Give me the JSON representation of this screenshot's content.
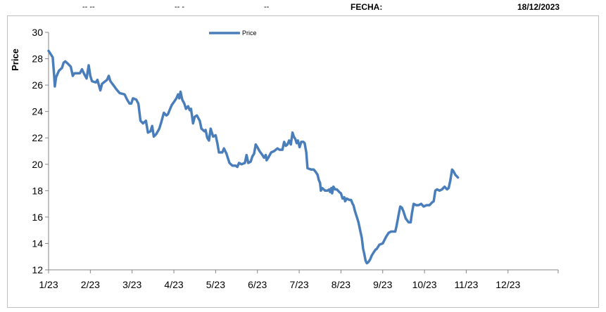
{
  "header": {
    "field1": "-- --",
    "field2": "-- -",
    "field3": "--",
    "fecha_label": "FECHA:",
    "fecha_value": "18/12/2023"
  },
  "colors": {
    "series": "#4a7ebb",
    "axis": "#868686",
    "frame": "#bfbfbf"
  },
  "chart_data": {
    "type": "line",
    "title": "",
    "xlabel": "",
    "ylabel": "Price",
    "ylim": [
      12,
      30
    ],
    "yticks": [
      12,
      14,
      16,
      18,
      20,
      22,
      24,
      26,
      28,
      30
    ],
    "xlim": [
      0,
      12.2
    ],
    "xticks": [
      {
        "pos": 0,
        "label": "1/23"
      },
      {
        "pos": 1,
        "label": "2/23"
      },
      {
        "pos": 2,
        "label": "3/23"
      },
      {
        "pos": 3,
        "label": "4/23"
      },
      {
        "pos": 4,
        "label": "5/23"
      },
      {
        "pos": 5,
        "label": "6/23"
      },
      {
        "pos": 6,
        "label": "7/23"
      },
      {
        "pos": 7,
        "label": "8/23"
      },
      {
        "pos": 8,
        "label": "9/23"
      },
      {
        "pos": 9,
        "label": "10/23"
      },
      {
        "pos": 10,
        "label": "11/23"
      },
      {
        "pos": 11,
        "label": "12/23"
      }
    ],
    "grid": false,
    "legend_position": "top-center",
    "series": [
      {
        "name": "Price",
        "points": [
          [
            0.0,
            28.6
          ],
          [
            0.06,
            28.3
          ],
          [
            0.1,
            28.1
          ],
          [
            0.13,
            26.9
          ],
          [
            0.15,
            25.9
          ],
          [
            0.18,
            26.6
          ],
          [
            0.25,
            27.1
          ],
          [
            0.32,
            27.3
          ],
          [
            0.36,
            27.7
          ],
          [
            0.4,
            27.8
          ],
          [
            0.47,
            27.6
          ],
          [
            0.53,
            27.4
          ],
          [
            0.58,
            26.7
          ],
          [
            0.62,
            26.9
          ],
          [
            0.75,
            26.9
          ],
          [
            0.8,
            27.2
          ],
          [
            0.86,
            26.8
          ],
          [
            0.91,
            26.5
          ],
          [
            0.96,
            27.5
          ],
          [
            1.0,
            26.7
          ],
          [
            1.04,
            26.3
          ],
          [
            1.13,
            26.2
          ],
          [
            1.17,
            26.4
          ],
          [
            1.24,
            25.6
          ],
          [
            1.28,
            26.1
          ],
          [
            1.36,
            26.3
          ],
          [
            1.4,
            26.4
          ],
          [
            1.44,
            26.7
          ],
          [
            1.48,
            26.3
          ],
          [
            1.55,
            26.0
          ],
          [
            1.62,
            25.7
          ],
          [
            1.7,
            25.4
          ],
          [
            1.82,
            25.3
          ],
          [
            1.88,
            24.9
          ],
          [
            1.94,
            24.6
          ],
          [
            1.98,
            24.6
          ],
          [
            2.02,
            25.0
          ],
          [
            2.1,
            24.9
          ],
          [
            2.15,
            24.6
          ],
          [
            2.2,
            23.3
          ],
          [
            2.26,
            23.1
          ],
          [
            2.33,
            23.3
          ],
          [
            2.38,
            22.4
          ],
          [
            2.44,
            22.5
          ],
          [
            2.48,
            22.9
          ],
          [
            2.52,
            22.1
          ],
          [
            2.58,
            22.3
          ],
          [
            2.65,
            22.7
          ],
          [
            2.7,
            23.2
          ],
          [
            2.76,
            23.9
          ],
          [
            2.82,
            23.7
          ],
          [
            2.86,
            23.8
          ],
          [
            2.91,
            24.2
          ],
          [
            2.95,
            24.5
          ],
          [
            3.02,
            24.8
          ],
          [
            3.06,
            25.0
          ],
          [
            3.1,
            25.3
          ],
          [
            3.13,
            25.0
          ],
          [
            3.16,
            25.5
          ],
          [
            3.2,
            24.9
          ],
          [
            3.25,
            24.6
          ],
          [
            3.29,
            24.2
          ],
          [
            3.34,
            24.4
          ],
          [
            3.38,
            24.1
          ],
          [
            3.41,
            24.2
          ],
          [
            3.46,
            23.1
          ],
          [
            3.5,
            23.6
          ],
          [
            3.55,
            23.7
          ],
          [
            3.62,
            23.3
          ],
          [
            3.66,
            22.7
          ],
          [
            3.73,
            22.5
          ],
          [
            3.76,
            22.6
          ],
          [
            3.8,
            22.0
          ],
          [
            3.84,
            21.8
          ],
          [
            3.88,
            22.7
          ],
          [
            3.94,
            22.1
          ],
          [
            4.0,
            22.2
          ],
          [
            4.04,
            21.6
          ],
          [
            4.08,
            20.9
          ],
          [
            4.16,
            20.9
          ],
          [
            4.2,
            21.2
          ],
          [
            4.26,
            20.8
          ],
          [
            4.33,
            20.1
          ],
          [
            4.4,
            19.9
          ],
          [
            4.48,
            19.9
          ],
          [
            4.52,
            19.8
          ],
          [
            4.56,
            20.1
          ],
          [
            4.62,
            20.0
          ],
          [
            4.7,
            20.1
          ],
          [
            4.74,
            20.7
          ],
          [
            4.78,
            20.1
          ],
          [
            4.84,
            20.2
          ],
          [
            4.88,
            20.6
          ],
          [
            4.92,
            20.8
          ],
          [
            4.96,
            21.5
          ],
          [
            5.0,
            21.3
          ],
          [
            5.05,
            21.0
          ],
          [
            5.12,
            20.7
          ],
          [
            5.16,
            20.5
          ],
          [
            5.2,
            20.7
          ],
          [
            5.22,
            20.3
          ],
          [
            5.26,
            20.5
          ],
          [
            5.33,
            20.9
          ],
          [
            5.4,
            21.0
          ],
          [
            5.48,
            21.2
          ],
          [
            5.53,
            21.1
          ],
          [
            5.6,
            21.1
          ],
          [
            5.64,
            21.7
          ],
          [
            5.68,
            21.4
          ],
          [
            5.72,
            21.5
          ],
          [
            5.76,
            21.8
          ],
          [
            5.8,
            21.5
          ],
          [
            5.84,
            22.4
          ],
          [
            5.87,
            22.1
          ],
          [
            5.91,
            21.9
          ],
          [
            5.94,
            21.6
          ],
          [
            5.97,
            21.8
          ],
          [
            6.01,
            21.3
          ],
          [
            6.05,
            21.7
          ],
          [
            6.1,
            21.7
          ],
          [
            6.13,
            21.6
          ],
          [
            6.17,
            20.9
          ],
          [
            6.2,
            19.7
          ],
          [
            6.29,
            19.6
          ],
          [
            6.35,
            19.6
          ],
          [
            6.4,
            19.4
          ],
          [
            6.44,
            19.2
          ],
          [
            6.47,
            18.8
          ],
          [
            6.5,
            18.6
          ],
          [
            6.52,
            18.0
          ],
          [
            6.55,
            18.2
          ],
          [
            6.62,
            18.0
          ],
          [
            6.68,
            18.0
          ],
          [
            6.72,
            18.1
          ],
          [
            6.74,
            17.9
          ],
          [
            6.77,
            18.2
          ],
          [
            6.79,
            17.8
          ],
          [
            6.82,
            18.3
          ],
          [
            6.86,
            18.1
          ],
          [
            6.9,
            18.1
          ],
          [
            6.96,
            17.9
          ],
          [
            7.0,
            17.8
          ],
          [
            7.04,
            17.4
          ],
          [
            7.08,
            17.5
          ],
          [
            7.1,
            17.2
          ],
          [
            7.14,
            17.4
          ],
          [
            7.2,
            17.3
          ],
          [
            7.24,
            17.3
          ],
          [
            7.28,
            17.0
          ],
          [
            7.3,
            16.9
          ],
          [
            7.34,
            16.4
          ],
          [
            7.36,
            16.2
          ],
          [
            7.38,
            16.0
          ],
          [
            7.42,
            15.6
          ],
          [
            7.46,
            15.0
          ],
          [
            7.5,
            14.4
          ],
          [
            7.53,
            13.6
          ],
          [
            7.56,
            13.2
          ],
          [
            7.59,
            12.7
          ],
          [
            7.62,
            12.5
          ],
          [
            7.66,
            12.6
          ],
          [
            7.7,
            12.8
          ],
          [
            7.74,
            13.1
          ],
          [
            7.78,
            13.3
          ],
          [
            7.82,
            13.5
          ],
          [
            7.86,
            13.6
          ],
          [
            7.92,
            13.9
          ],
          [
            8.0,
            14.0
          ],
          [
            8.08,
            14.5
          ],
          [
            8.14,
            14.8
          ],
          [
            8.2,
            14.9
          ],
          [
            8.26,
            14.9
          ],
          [
            8.3,
            14.9
          ],
          [
            8.33,
            15.3
          ],
          [
            8.36,
            15.8
          ],
          [
            8.4,
            16.5
          ],
          [
            8.42,
            16.8
          ],
          [
            8.46,
            16.7
          ],
          [
            8.5,
            16.4
          ],
          [
            8.55,
            15.9
          ],
          [
            8.62,
            15.6
          ],
          [
            8.67,
            15.6
          ],
          [
            8.7,
            16.3
          ],
          [
            8.74,
            17.0
          ],
          [
            8.8,
            16.9
          ],
          [
            8.86,
            16.9
          ],
          [
            8.92,
            17.0
          ],
          [
            8.98,
            16.8
          ],
          [
            9.05,
            16.9
          ],
          [
            9.12,
            16.9
          ],
          [
            9.18,
            17.1
          ],
          [
            9.22,
            17.2
          ],
          [
            9.26,
            18.0
          ],
          [
            9.3,
            18.1
          ],
          [
            9.36,
            18.0
          ],
          [
            9.42,
            18.1
          ],
          [
            9.48,
            18.3
          ],
          [
            9.54,
            18.1
          ],
          [
            9.58,
            18.2
          ],
          [
            9.62,
            18.8
          ],
          [
            9.66,
            19.6
          ],
          [
            9.69,
            19.5
          ],
          [
            9.74,
            19.2
          ],
          [
            9.8,
            19.0
          ]
        ]
      }
    ]
  }
}
